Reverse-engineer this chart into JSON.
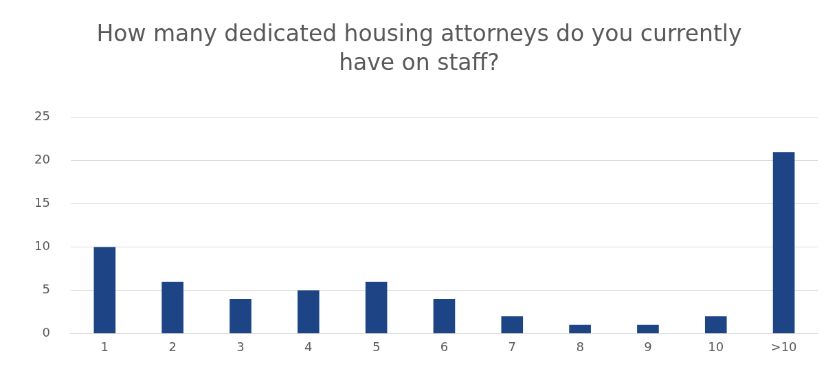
{
  "chart_data": {
    "type": "bar",
    "title": "How many dedicated housing attorneys do you currently have on staff?",
    "categories": [
      "1",
      "2",
      "3",
      "4",
      "5",
      "6",
      "7",
      "8",
      "9",
      "10",
      ">10"
    ],
    "values": [
      10,
      6,
      4,
      5,
      6,
      4,
      2,
      1,
      1,
      2,
      21
    ],
    "color": "#1d4585",
    "ylim": [
      0,
      25
    ],
    "yticks": [
      0,
      5,
      10,
      15,
      20,
      25
    ],
    "grid": "y",
    "legend": false
  }
}
